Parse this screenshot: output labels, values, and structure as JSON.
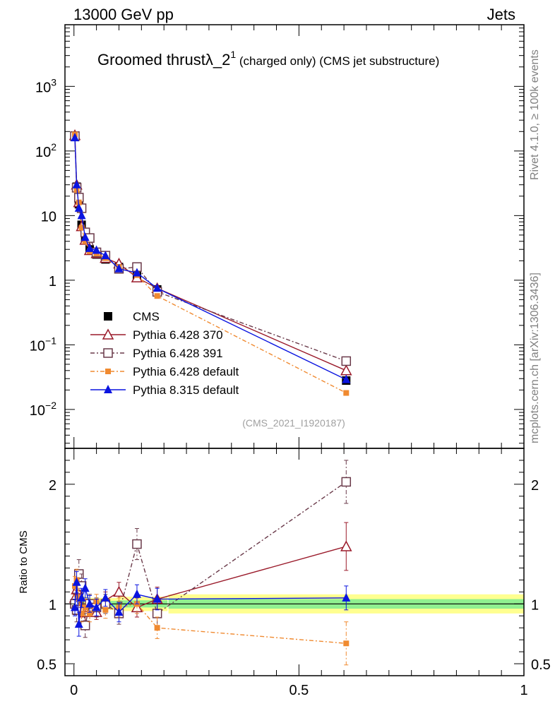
{
  "header": {
    "left": "13000 GeV pp",
    "right": "Jets"
  },
  "side_labels": {
    "rivet": "Rivet 4.1.0, ≥ 100k events",
    "mcplots": "mcplots.cern.ch [arXiv:1306.3436]"
  },
  "chart_data": [
    {
      "type": "line",
      "panel": "main",
      "title": "Groomed thrustλ_2",
      "title_sup": "1",
      "title_suffix": " (charged only) (CMS jet substructure)",
      "analysis": "(CMS_2021_I1920187)",
      "xlabel": "",
      "ylabel": "",
      "yscale": "log",
      "xlim": [
        -0.02,
        1.0
      ],
      "ylim": [
        0.0025,
        9000
      ],
      "y_tick_labels": [
        {
          "v": 1000,
          "base": "10",
          "exp": "3"
        },
        {
          "v": 100,
          "base": "10",
          "exp": "2"
        },
        {
          "v": 10,
          "base": "10",
          "exp": ""
        },
        {
          "v": 1,
          "base": "1",
          "exp": ""
        },
        {
          "v": 0.1,
          "base": "10",
          "exp": "−1"
        },
        {
          "v": 0.01,
          "base": "10",
          "exp": "−2"
        }
      ],
      "x_ticks": [
        0,
        0.5,
        1
      ],
      "legend_position": "lower-left",
      "series": [
        {
          "name": "CMS",
          "color": "#000000",
          "marker": "filled-square",
          "line": "none",
          "x": [
            0.002,
            0.006,
            0.011,
            0.017,
            0.025,
            0.035,
            0.05,
            0.07,
            0.1,
            0.14,
            0.185,
            0.605
          ],
          "y": [
            165,
            28,
            15,
            7.2,
            4.5,
            3.0,
            2.5,
            2.1,
            1.6,
            1.2,
            0.72,
            0.028
          ],
          "err": [
            0.05,
            0.06,
            0.07,
            0.07,
            0.06,
            0.05,
            0.05,
            0.05,
            0.06,
            0.06,
            0.06,
            0.1
          ]
        },
        {
          "name": "Pythia 6.428 370",
          "color": "#9a1a2a",
          "marker": "open-triangle",
          "line": "solid",
          "x": [
            0.002,
            0.006,
            0.011,
            0.017,
            0.025,
            0.035,
            0.05,
            0.07,
            0.1,
            0.14,
            0.185,
            0.605
          ],
          "y": [
            175,
            30,
            16,
            6.8,
            4.2,
            2.9,
            2.6,
            2.2,
            1.8,
            1.1,
            0.75,
            0.04
          ],
          "ratio": [
            1.05,
            1.12,
            1.0,
            0.95,
            0.93,
            0.97,
            0.93,
            1.03,
            1.1,
            0.97,
            1.04,
            1.48
          ],
          "ratio_err": [
            0.07,
            0.09,
            0.08,
            0.06,
            0.07,
            0.06,
            0.06,
            0.07,
            0.08,
            0.08,
            0.1,
            0.2
          ]
        },
        {
          "name": "Pythia 6.428 391",
          "color": "#6a3a4a",
          "marker": "open-square",
          "line": "dashdot",
          "x": [
            0.002,
            0.006,
            0.011,
            0.017,
            0.025,
            0.035,
            0.05,
            0.07,
            0.1,
            0.14,
            0.185,
            0.605
          ],
          "y": [
            170,
            27,
            19,
            13,
            5.5,
            4.5,
            2.7,
            2.4,
            1.5,
            1.6,
            0.66,
            0.056
          ],
          "ratio": [
            1.0,
            0.95,
            1.25,
            1.15,
            0.82,
            1.0,
            0.97,
            1.0,
            0.92,
            1.5,
            0.92,
            2.02
          ],
          "ratio_err": [
            0.09,
            0.1,
            0.12,
            0.1,
            0.1,
            0.08,
            0.08,
            0.08,
            0.09,
            0.13,
            0.11,
            0.18
          ]
        },
        {
          "name": "Pythia 6.428 default",
          "color": "#f08a30",
          "marker": "filled-small-square",
          "line": "dashdot",
          "x": [
            0.002,
            0.006,
            0.011,
            0.017,
            0.025,
            0.035,
            0.05,
            0.07,
            0.1,
            0.14,
            0.185,
            0.605
          ],
          "y": [
            180,
            25,
            16,
            6.5,
            4.0,
            2.8,
            2.6,
            2.2,
            1.6,
            1.2,
            0.57,
            0.018
          ],
          "ratio": [
            1.15,
            1.2,
            1.05,
            0.92,
            0.97,
            0.92,
            1.02,
            0.95,
            0.97,
            1.0,
            0.8,
            0.67
          ],
          "ratio_err": [
            0.08,
            0.09,
            0.08,
            0.07,
            0.07,
            0.07,
            0.06,
            0.07,
            0.08,
            0.08,
            0.09,
            0.18
          ]
        },
        {
          "name": "Pythia 8.315 default",
          "color": "#0a14e0",
          "marker": "filled-triangle",
          "line": "solid",
          "x": [
            0.002,
            0.006,
            0.011,
            0.017,
            0.025,
            0.035,
            0.05,
            0.07,
            0.1,
            0.14,
            0.185,
            0.605
          ],
          "y": [
            160,
            30,
            13,
            10,
            4.6,
            3.1,
            2.9,
            2.4,
            1.5,
            1.3,
            0.75,
            0.029
          ],
          "ratio": [
            0.97,
            1.18,
            0.83,
            1.05,
            1.13,
            1.0,
            0.97,
            1.05,
            0.93,
            1.08,
            1.04,
            1.05
          ],
          "ratio_err": [
            0.07,
            0.09,
            0.1,
            0.08,
            0.08,
            0.07,
            0.07,
            0.07,
            0.08,
            0.08,
            0.09,
            0.1
          ]
        }
      ]
    },
    {
      "type": "line",
      "panel": "ratio",
      "ylabel": "Ratio to CMS",
      "xlabel": "",
      "xlim": [
        -0.02,
        1.0
      ],
      "ylim": [
        0.4,
        2.3
      ],
      "y_ticks": [
        0.5,
        1,
        2
      ],
      "x_ticks": [
        0,
        0.5,
        1
      ],
      "reference": 1,
      "bands": [
        {
          "name": "total uncertainty",
          "color": "#ffff90",
          "x": [
            0.21,
            1.0
          ],
          "lo": 0.92,
          "hi": 1.08
        },
        {
          "name": "stat uncertainty",
          "color": "#90f090",
          "x": [
            0.21,
            1.0
          ],
          "lo": 0.96,
          "hi": 1.04
        }
      ]
    }
  ]
}
